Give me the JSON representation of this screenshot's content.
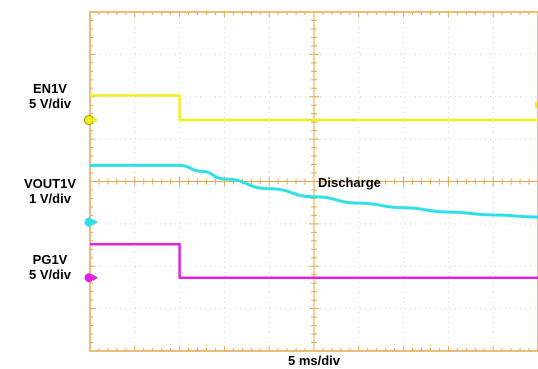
{
  "chart_data": {
    "type": "line",
    "title": "",
    "xlabel": "5 ms/div",
    "ylabel": "",
    "x_divisions": 10,
    "y_divisions": 8,
    "grid": true,
    "x_range_div": [
      0,
      10
    ],
    "y_range_div": [
      0,
      8
    ],
    "annotation": "Discharge",
    "colors": {
      "grid": "#e6a84a",
      "dots": "#d6d6d6",
      "en": "#f2ef1e",
      "vout": "#2fe0ea",
      "pg": "#df24dc"
    },
    "series": [
      {
        "label_line1": "EN1V",
        "label_line2": "5 V/div",
        "color_key": "en",
        "ground_marker_div": 5.45,
        "x_div": [
          0,
          2.0,
          2.0,
          10
        ],
        "y_div": [
          6.03,
          6.03,
          5.45,
          5.45
        ]
      },
      {
        "label_line1": "VOUT1V",
        "label_line2": "1 V/div",
        "color_key": "vout",
        "ground_marker_div": 3.04,
        "x_div": [
          0,
          1.0,
          2.0,
          2.5,
          3.0,
          4.0,
          5.0,
          6.0,
          7.0,
          8.0,
          9.0,
          10
        ],
        "y_div": [
          4.38,
          4.38,
          4.38,
          4.24,
          4.06,
          3.83,
          3.64,
          3.49,
          3.38,
          3.28,
          3.21,
          3.16
        ]
      },
      {
        "label_line1": "PG1V",
        "label_line2": "5 V/div",
        "color_key": "pg",
        "ground_marker_div": 1.73,
        "x_div": [
          0,
          2.0,
          2.0,
          10
        ],
        "y_div": [
          2.52,
          2.52,
          1.73,
          1.73
        ]
      }
    ]
  }
}
